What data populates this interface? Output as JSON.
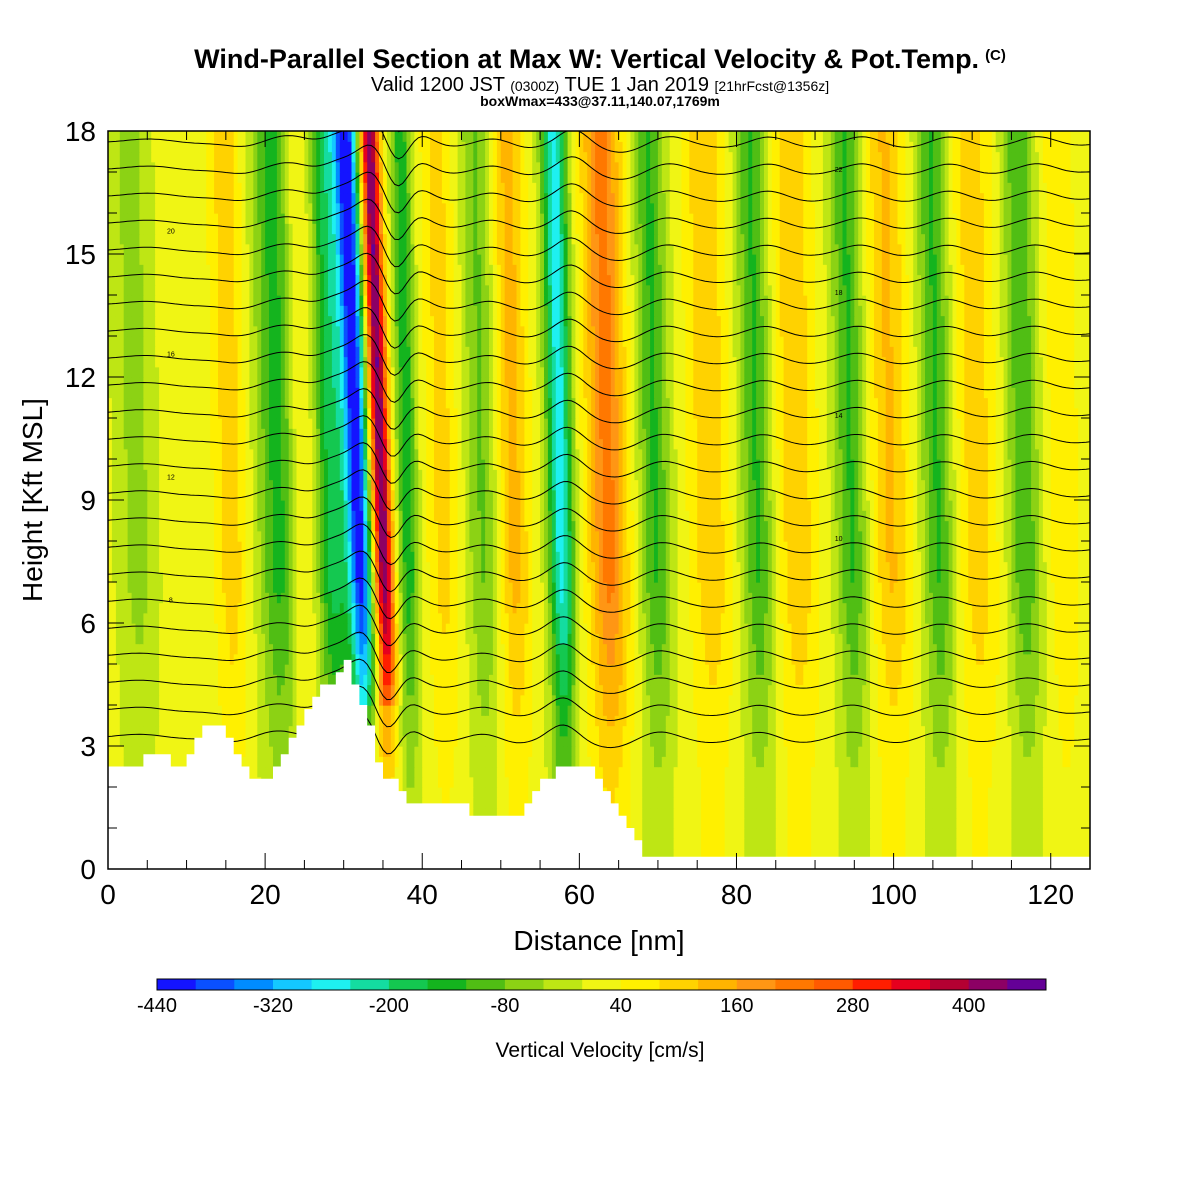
{
  "title": {
    "main": "Wind-Parallel Section at Max W: Vertical Velocity & Pot.Temp.",
    "copyright": "(C)",
    "valid_prefix": "Valid 1200 JST",
    "valid_utc": "(0300Z)",
    "valid_date": "TUE 1 Jan 2019",
    "forecast": "[21hrFcst@1356z]",
    "boxinfo": "boxWmax=433@37.11,140.07,1769m"
  },
  "colors": {
    "scale": [
      "#1414ff",
      "#0a50ff",
      "#008cff",
      "#14c8ff",
      "#1ef0f0",
      "#14dca0",
      "#14c850",
      "#14b41e",
      "#50be14",
      "#8cd214",
      "#bee614",
      "#f0f514",
      "#fff000",
      "#ffd200",
      "#ffb400",
      "#ff9614",
      "#ff7800",
      "#ff5a00",
      "#ff1e00",
      "#e6001e",
      "#b40032",
      "#8c0064",
      "#640096"
    ],
    "terrain": "#ffffff",
    "contour": "#000000"
  },
  "chart_data": {
    "type": "heatmap",
    "xlabel": "Distance [nm]",
    "ylabel": "Height [Kft MSL]",
    "xlim": [
      0,
      125
    ],
    "ylim": [
      0,
      18
    ],
    "xticks": [
      0,
      20,
      40,
      60,
      80,
      100,
      120
    ],
    "yticks": [
      0,
      3,
      6,
      9,
      12,
      15,
      18
    ],
    "colorbar": {
      "label": "Vertical Velocity [cm/s]",
      "levels": [
        -440,
        -400,
        -360,
        -320,
        -280,
        -240,
        -200,
        -160,
        -120,
        -80,
        -40,
        0,
        40,
        80,
        120,
        160,
        200,
        240,
        280,
        320,
        360,
        400,
        440,
        480
      ],
      "tick_labels": [
        -440,
        -320,
        -200,
        -80,
        40,
        160,
        280,
        400
      ]
    },
    "vertical_velocity_bands": [
      {
        "x": 4,
        "w": -70,
        "width": 2.5
      },
      {
        "x": 10,
        "w": 20,
        "width": 2
      },
      {
        "x": 16,
        "w": 90,
        "width": 2
      },
      {
        "x": 22,
        "w": -150,
        "width": 2.5
      },
      {
        "x": 25,
        "w": 60,
        "width": 1.5
      },
      {
        "x": 29,
        "w": -200,
        "width": 2
      },
      {
        "x": 32.5,
        "w": -440,
        "width": 1.5
      },
      {
        "x": 35.5,
        "w": 433,
        "width": 1.2
      },
      {
        "x": 38.5,
        "w": -160,
        "width": 1.3
      },
      {
        "x": 43,
        "w": 80,
        "width": 2
      },
      {
        "x": 48,
        "w": -100,
        "width": 2
      },
      {
        "x": 52,
        "w": 120,
        "width": 2
      },
      {
        "x": 58,
        "w": -280,
        "width": 1.6
      },
      {
        "x": 64,
        "w": 200,
        "width": 2.5
      },
      {
        "x": 70,
        "w": -140,
        "width": 2
      },
      {
        "x": 77,
        "w": 100,
        "width": 2.5
      },
      {
        "x": 83,
        "w": -140,
        "width": 2
      },
      {
        "x": 88,
        "w": 100,
        "width": 2.5
      },
      {
        "x": 95,
        "w": -140,
        "width": 2
      },
      {
        "x": 100,
        "w": 110,
        "width": 2.5
      },
      {
        "x": 106,
        "w": -140,
        "width": 2
      },
      {
        "x": 111,
        "w": 90,
        "width": 2.5
      },
      {
        "x": 117,
        "w": -130,
        "width": 2
      },
      {
        "x": 122,
        "w": 60,
        "width": 2
      }
    ],
    "terrain_height": [
      [
        0,
        2.5
      ],
      [
        4.5,
        2.5
      ],
      [
        4.5,
        2.8
      ],
      [
        8,
        2.8
      ],
      [
        8,
        2.5
      ],
      [
        10,
        2.5
      ],
      [
        10,
        2.8
      ],
      [
        11,
        2.8
      ],
      [
        11,
        3.2
      ],
      [
        12,
        3.2
      ],
      [
        12,
        3.5
      ],
      [
        15,
        3.5
      ],
      [
        15,
        3.2
      ],
      [
        16,
        3.2
      ],
      [
        16,
        2.8
      ],
      [
        17,
        2.8
      ],
      [
        17,
        2.5
      ],
      [
        18,
        2.5
      ],
      [
        18,
        2.2
      ],
      [
        21,
        2.2
      ],
      [
        21,
        2.5
      ],
      [
        22,
        2.5
      ],
      [
        22,
        2.8
      ],
      [
        23,
        2.8
      ],
      [
        23,
        3.2
      ],
      [
        24,
        3.2
      ],
      [
        24,
        3.5
      ],
      [
        25,
        3.5
      ],
      [
        25,
        3.9
      ],
      [
        26,
        3.9
      ],
      [
        26,
        4.2
      ],
      [
        27,
        4.2
      ],
      [
        27,
        4.5
      ],
      [
        29,
        4.5
      ],
      [
        29,
        4.8
      ],
      [
        30,
        4.8
      ],
      [
        30,
        5.1
      ],
      [
        31,
        5.1
      ],
      [
        31,
        4.5
      ],
      [
        32,
        4.5
      ],
      [
        32,
        4.0
      ],
      [
        33,
        4.0
      ],
      [
        33,
        3.5
      ],
      [
        34,
        3.5
      ],
      [
        34,
        2.6
      ],
      [
        35,
        2.6
      ],
      [
        35,
        2.2
      ],
      [
        37,
        2.2
      ],
      [
        37,
        1.9
      ],
      [
        38,
        1.9
      ],
      [
        38,
        1.6
      ],
      [
        46,
        1.6
      ],
      [
        46,
        1.3
      ],
      [
        48,
        1.3
      ],
      [
        48,
        1.3
      ],
      [
        53,
        1.3
      ],
      [
        53,
        1.6
      ],
      [
        54,
        1.6
      ],
      [
        54,
        1.9
      ],
      [
        55,
        1.9
      ],
      [
        55,
        2.2
      ],
      [
        57,
        2.2
      ],
      [
        57,
        2.5
      ],
      [
        62,
        2.5
      ],
      [
        62,
        2.2
      ],
      [
        63,
        2.2
      ],
      [
        63,
        1.9
      ],
      [
        64,
        1.9
      ],
      [
        64,
        1.6
      ],
      [
        65,
        1.6
      ],
      [
        65,
        1.3
      ],
      [
        66,
        1.3
      ],
      [
        66,
        1.0
      ],
      [
        67,
        1.0
      ],
      [
        67,
        0.7
      ],
      [
        68,
        0.7
      ],
      [
        68,
        0.3
      ],
      [
        125,
        0.3
      ]
    ],
    "theta_contour_labels": [
      "8",
      "10",
      "12",
      "14",
      "16",
      "18",
      "20",
      "22"
    ],
    "colors_note": "shading = vertical velocity; black lines = potential temperature (C)"
  }
}
